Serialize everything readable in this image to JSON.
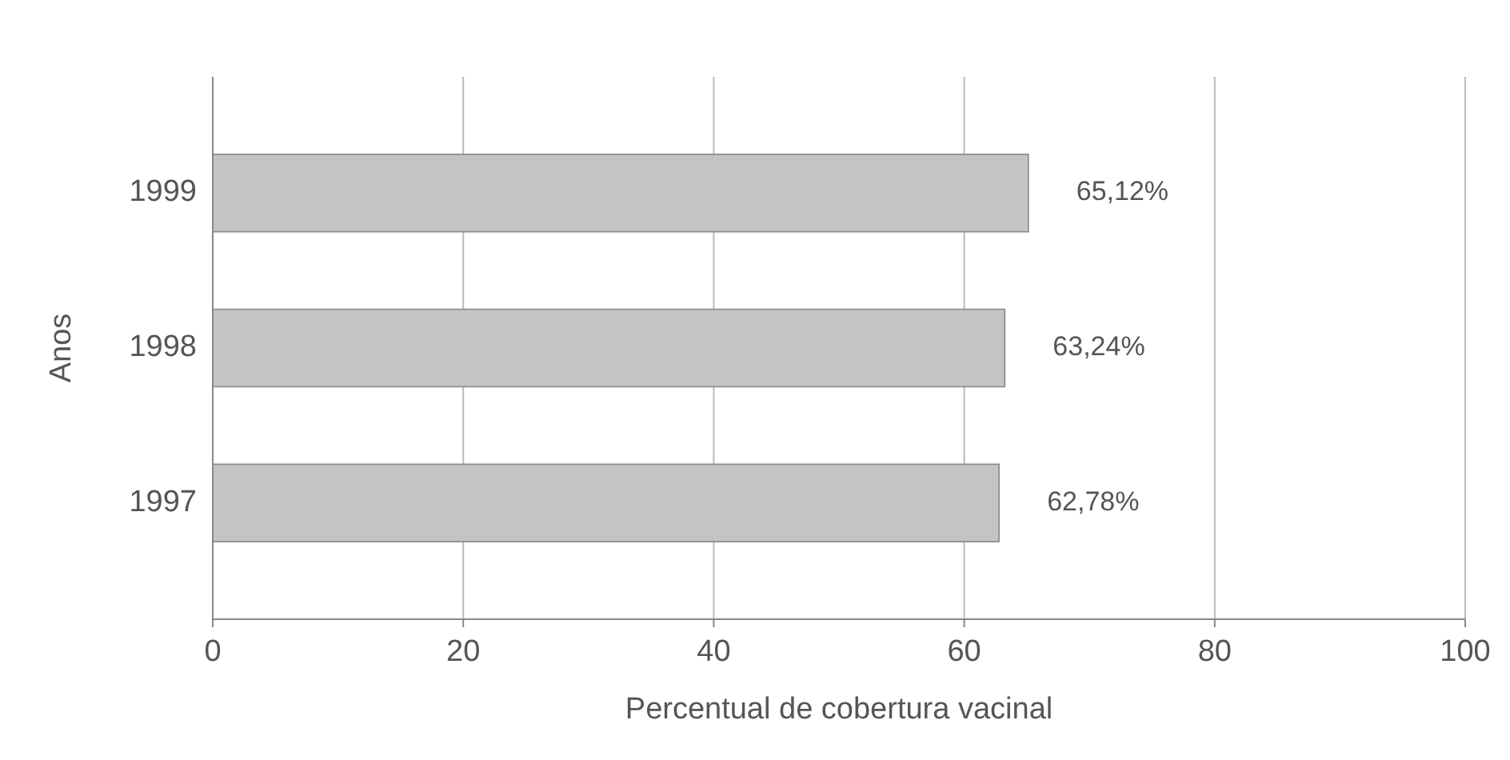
{
  "chart_data": {
    "type": "bar",
    "orientation": "horizontal",
    "xlabel": "Percentual de cobertura vacinal",
    "ylabel": "Anos",
    "categories": [
      "1999",
      "1998",
      "1997"
    ],
    "values": [
      65.12,
      63.24,
      62.78
    ],
    "value_labels": [
      "65,12%",
      "63,24%",
      "62,78%"
    ],
    "color": "#c4c4c4",
    "xlim": [
      0,
      100
    ],
    "xticks": [
      0,
      20,
      40,
      60,
      80,
      100
    ],
    "grid": "x"
  }
}
